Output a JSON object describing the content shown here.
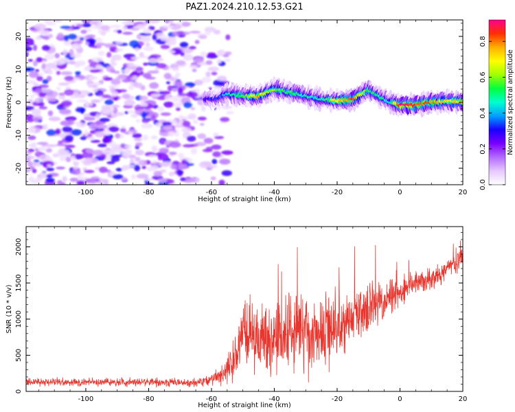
{
  "title": "PAZ1.2024.210.12.53.G21",
  "chart_data": [
    {
      "type": "heatmap",
      "xlabel": "Height of straight line (km)",
      "ylabel": "Frequency (Hz)",
      "xlim": [
        -119,
        20
      ],
      "ylim": [
        -25,
        25
      ],
      "xticks": [
        -100,
        -80,
        -60,
        -40,
        -20,
        0,
        20
      ],
      "yticks": [
        -20,
        -10,
        0,
        10,
        20
      ],
      "ridge": {
        "x": [
          -58,
          -55,
          -50,
          -45,
          -40,
          -36,
          -32,
          -28,
          -24,
          -20,
          -15,
          -10,
          -7,
          -3,
          0,
          5,
          10,
          15,
          20
        ],
        "freq": [
          1.0,
          2.5,
          2.0,
          1.8,
          4.0,
          3.2,
          2.5,
          1.5,
          0.8,
          0.5,
          0.8,
          3.8,
          2.0,
          0.0,
          -0.8,
          -0.8,
          0.0,
          0.3,
          0.2
        ],
        "amplitude": [
          0.3,
          0.45,
          0.55,
          0.75,
          0.6,
          0.55,
          0.5,
          0.45,
          0.5,
          0.7,
          0.85,
          0.55,
          0.5,
          0.45,
          0.9,
          0.85,
          0.8,
          0.7,
          0.75
        ]
      },
      "colorbar": {
        "label": "Normalized spectral amplitude",
        "range": [
          0,
          0.92
        ],
        "ticks": [
          0.0,
          0.2,
          0.4,
          0.6,
          0.8
        ],
        "tick_labels": [
          "0.0",
          "0.2",
          "0.4",
          "0.6",
          "0.8"
        ],
        "colormap": [
          "#ffffff",
          "#e6c8ff",
          "#b46bff",
          "#7a00ff",
          "#1a00ff",
          "#00a0ff",
          "#00ffd0",
          "#00ff40",
          "#a0ff00",
          "#ffff00",
          "#ffb000",
          "#ff3000",
          "#ff0090"
        ]
      }
    },
    {
      "type": "line",
      "xlabel": "Height of straight line (km)",
      "ylabel": "SNR (10 * v/v)",
      "xlim": [
        -119,
        20
      ],
      "ylim": [
        0,
        2280
      ],
      "xticks": [
        -100,
        -80,
        -60,
        -40,
        -20,
        0,
        20
      ],
      "yticks": [
        0,
        500,
        1000,
        1500,
        2000
      ],
      "color": "#e8362e",
      "trend": {
        "x": [
          -119,
          -100,
          -80,
          -65,
          -60,
          -56,
          -53,
          -51,
          -50,
          -48,
          -45,
          -40,
          -35,
          -30,
          -25,
          -20,
          -15,
          -10,
          -5,
          0,
          5,
          10,
          15,
          20
        ],
        "snr": [
          130,
          125,
          130,
          120,
          170,
          260,
          400,
          650,
          850,
          800,
          700,
          750,
          850,
          800,
          800,
          900,
          1050,
          1200,
          1250,
          1350,
          1500,
          1550,
          1700,
          1850
        ],
        "spread": [
          60,
          60,
          60,
          60,
          80,
          180,
          300,
          450,
          500,
          500,
          500,
          550,
          550,
          550,
          550,
          500,
          450,
          400,
          300,
          250,
          200,
          180,
          150,
          150
        ]
      }
    }
  ]
}
